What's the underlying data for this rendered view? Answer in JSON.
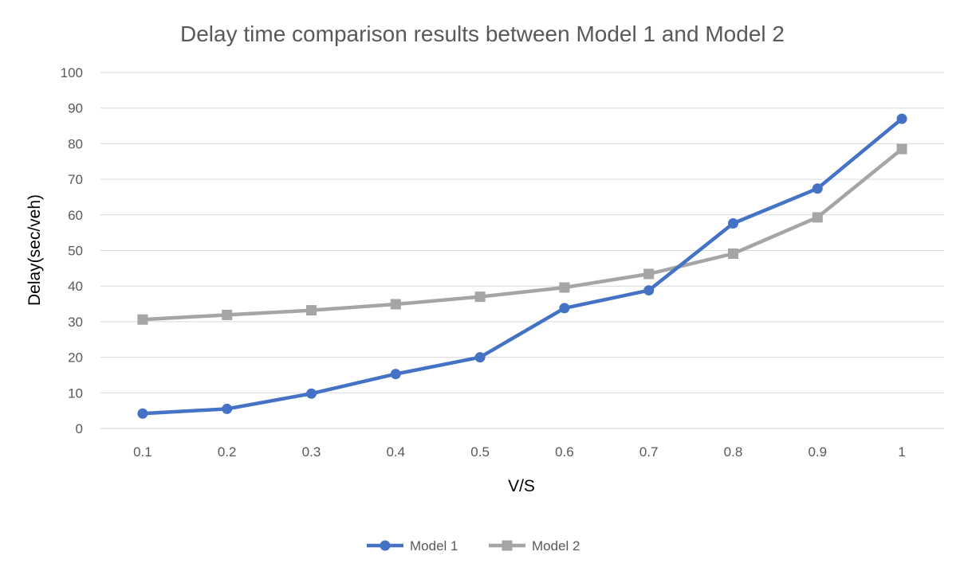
{
  "chart_data": {
    "type": "line",
    "title": "Delay time comparison results between Model 1 and Model 2",
    "xlabel": "V/S",
    "ylabel": "Delay(sec/veh)",
    "categories": [
      "0.1",
      "0.2",
      "0.3",
      "0.4",
      "0.5",
      "0.6",
      "0.7",
      "0.8",
      "0.9",
      "1"
    ],
    "ylim": [
      0,
      100
    ],
    "yticks": [
      0,
      10,
      20,
      30,
      40,
      50,
      60,
      70,
      80,
      90,
      100
    ],
    "grid": "horizontal",
    "legend_position": "bottom",
    "series": [
      {
        "name": "Model 1",
        "color": "#4472C4",
        "marker": "circle",
        "values": [
          4.2,
          5.5,
          9.8,
          15.3,
          20.0,
          33.8,
          38.8,
          57.6,
          67.4,
          87.0
        ]
      },
      {
        "name": "Model 2",
        "color": "#A5A5A5",
        "marker": "square",
        "values": [
          30.6,
          31.9,
          33.2,
          34.9,
          37.0,
          39.6,
          43.4,
          49.1,
          59.3,
          78.5
        ]
      }
    ]
  }
}
